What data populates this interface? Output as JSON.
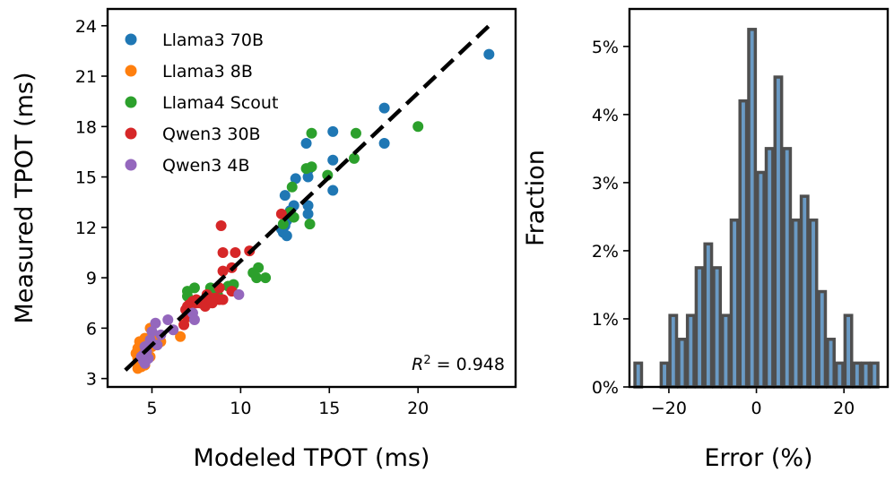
{
  "chart_data": [
    {
      "type": "scatter",
      "xlabel": "Modeled TPOT (ms)",
      "ylabel": "Measured TPOT (ms)",
      "xlim": [
        2.5,
        25.5
      ],
      "ylim": [
        2.5,
        25.0
      ],
      "xticks": [
        5,
        10,
        15,
        20
      ],
      "yticks": [
        3,
        6,
        9,
        12,
        15,
        18,
        21,
        24
      ],
      "legend_position": "top-left",
      "annotation": {
        "prefix": "R",
        "sup": "2",
        "suffix": " = 0.948"
      },
      "fit_line": {
        "x": [
          3.5,
          24.0
        ],
        "y": [
          3.5,
          24.0
        ],
        "style": "dashed"
      },
      "series": [
        {
          "name": "Llama3 70B",
          "color": "#1f77b4",
          "points": [
            [
              24.0,
              22.3
            ],
            [
              18.1,
              19.1
            ],
            [
              18.1,
              17.0
            ],
            [
              15.2,
              17.7
            ],
            [
              13.7,
              17.0
            ],
            [
              15.2,
              16.0
            ],
            [
              13.8,
              15.4
            ],
            [
              13.8,
              15.0
            ],
            [
              13.1,
              14.9
            ],
            [
              15.2,
              14.2
            ],
            [
              12.5,
              13.9
            ],
            [
              13.0,
              13.3
            ],
            [
              12.8,
              13.0
            ],
            [
              13.8,
              13.3
            ],
            [
              13.8,
              12.8
            ],
            [
              12.6,
              12.4
            ],
            [
              12.7,
              12.7
            ],
            [
              12.5,
              12.1
            ],
            [
              12.3,
              11.9
            ],
            [
              12.4,
              11.7
            ],
            [
              12.6,
              11.5
            ]
          ]
        },
        {
          "name": "Llama3 8B",
          "color": "#ff7f0e",
          "points": [
            [
              4.2,
              3.6
            ],
            [
              4.3,
              3.8
            ],
            [
              4.4,
              4.0
            ],
            [
              4.2,
              4.2
            ],
            [
              4.3,
              4.4
            ],
            [
              4.5,
              4.6
            ],
            [
              4.2,
              4.8
            ],
            [
              4.4,
              5.0
            ],
            [
              4.3,
              5.2
            ],
            [
              4.6,
              5.4
            ],
            [
              4.8,
              5.1
            ],
            [
              4.7,
              4.7
            ],
            [
              4.5,
              4.4
            ],
            [
              5.2,
              5.4
            ],
            [
              5.5,
              5.2
            ],
            [
              4.9,
              6.0
            ],
            [
              6.6,
              5.5
            ],
            [
              6.9,
              6.6
            ],
            [
              4.6,
              3.8
            ],
            [
              4.9,
              4.3
            ],
            [
              5.0,
              4.9
            ],
            [
              4.3,
              4.1
            ],
            [
              4.1,
              4.5
            ],
            [
              4.4,
              3.7
            ]
          ]
        },
        {
          "name": "Llama4 Scout",
          "color": "#2ca02c",
          "points": [
            [
              20.0,
              18.0
            ],
            [
              16.5,
              17.6
            ],
            [
              14.0,
              17.6
            ],
            [
              16.4,
              16.1
            ],
            [
              14.9,
              15.1
            ],
            [
              13.7,
              15.5
            ],
            [
              14.0,
              15.6
            ],
            [
              12.9,
              14.4
            ],
            [
              12.8,
              12.9
            ],
            [
              13.0,
              12.6
            ],
            [
              12.4,
              12.2
            ],
            [
              13.9,
              12.2
            ],
            [
              11.0,
              9.6
            ],
            [
              11.4,
              9.0
            ],
            [
              10.9,
              9.0
            ],
            [
              10.7,
              9.3
            ],
            [
              9.3,
              8.5
            ],
            [
              9.6,
              8.6
            ],
            [
              8.3,
              8.4
            ],
            [
              7.0,
              8.2
            ],
            [
              7.4,
              8.4
            ],
            [
              7.0,
              7.9
            ],
            [
              9.5,
              8.3
            ],
            [
              8.7,
              8.0
            ]
          ]
        },
        {
          "name": "Qwen3 30B",
          "color": "#d62728",
          "points": [
            [
              12.3,
              12.8
            ],
            [
              8.9,
              12.1
            ],
            [
              10.5,
              10.6
            ],
            [
              9.7,
              10.5
            ],
            [
              9.0,
              10.5
            ],
            [
              9.5,
              9.6
            ],
            [
              9.0,
              9.4
            ],
            [
              8.8,
              8.4
            ],
            [
              9.5,
              8.2
            ],
            [
              8.1,
              8.0
            ],
            [
              8.3,
              7.8
            ],
            [
              8.6,
              7.8
            ],
            [
              8.8,
              7.7
            ],
            [
              7.9,
              7.6
            ],
            [
              7.7,
              7.5
            ],
            [
              7.5,
              7.5
            ],
            [
              7.3,
              7.6
            ],
            [
              7.1,
              7.4
            ],
            [
              7.0,
              7.3
            ],
            [
              6.9,
              7.1
            ],
            [
              7.2,
              7.0
            ],
            [
              7.0,
              6.7
            ],
            [
              6.8,
              6.2
            ],
            [
              7.5,
              7.7
            ],
            [
              8.0,
              7.3
            ],
            [
              8.4,
              7.5
            ],
            [
              9.0,
              7.7
            ]
          ]
        },
        {
          "name": "Qwen3 4B",
          "color": "#9467bd",
          "points": [
            [
              9.9,
              8.0
            ],
            [
              5.2,
              6.3
            ],
            [
              5.9,
              6.5
            ],
            [
              7.4,
              6.5
            ],
            [
              7.3,
              6.9
            ],
            [
              6.2,
              5.9
            ],
            [
              5.5,
              5.6
            ],
            [
              5.0,
              5.8
            ],
            [
              4.9,
              5.3
            ],
            [
              4.6,
              4.9
            ],
            [
              4.7,
              4.6
            ],
            [
              4.5,
              4.4
            ],
            [
              4.8,
              4.2
            ],
            [
              4.5,
              4.1
            ],
            [
              4.6,
              3.9
            ],
            [
              4.4,
              4.3
            ],
            [
              5.3,
              5.0
            ]
          ]
        }
      ]
    },
    {
      "type": "bar",
      "subtype": "histogram",
      "xlabel": "Error (%)",
      "ylabel": "Fraction",
      "xlim": [
        -29,
        30
      ],
      "ylim": [
        0,
        5.55
      ],
      "xticks": [
        -20,
        0,
        20
      ],
      "xtick_labels": [
        "−20",
        "0",
        "20"
      ],
      "yticks": [
        0,
        1,
        2,
        3,
        4,
        5
      ],
      "ytick_labels": [
        "0%",
        "1%",
        "2%",
        "3%",
        "4%",
        "5%"
      ],
      "bar_color": "#6a9ac4",
      "edge_color": "#4f4f4f",
      "bins": [
        {
          "left": -28,
          "right": -26,
          "value": 0.35
        },
        {
          "left": -22,
          "right": -20,
          "value": 0.35
        },
        {
          "left": -20,
          "right": -18,
          "value": 1.05
        },
        {
          "left": -18,
          "right": -16,
          "value": 0.7
        },
        {
          "left": -16,
          "right": -14,
          "value": 1.05
        },
        {
          "left": -14,
          "right": -12,
          "value": 1.75
        },
        {
          "left": -12,
          "right": -10,
          "value": 2.1
        },
        {
          "left": -10,
          "right": -8,
          "value": 1.75
        },
        {
          "left": -8,
          "right": -6,
          "value": 1.05
        },
        {
          "left": -6,
          "right": -4,
          "value": 2.45
        },
        {
          "left": -4,
          "right": -2,
          "value": 4.2
        },
        {
          "left": -2,
          "right": 0,
          "value": 5.25
        },
        {
          "left": 0,
          "right": 2,
          "value": 3.15
        },
        {
          "left": 2,
          "right": 4,
          "value": 3.5
        },
        {
          "left": 4,
          "right": 6,
          "value": 4.55
        },
        {
          "left": 6,
          "right": 8,
          "value": 3.5
        },
        {
          "left": 8,
          "right": 10,
          "value": 2.45
        },
        {
          "left": 10,
          "right": 12,
          "value": 2.8
        },
        {
          "left": 12,
          "right": 14,
          "value": 2.45
        },
        {
          "left": 14,
          "right": 16,
          "value": 1.4
        },
        {
          "left": 16,
          "right": 18,
          "value": 0.7
        },
        {
          "left": 18,
          "right": 20,
          "value": 0.35
        },
        {
          "left": 20,
          "right": 22,
          "value": 1.05
        },
        {
          "left": 22,
          "right": 24,
          "value": 0.35
        },
        {
          "left": 24,
          "right": 26,
          "value": 0.35
        },
        {
          "left": 26,
          "right": 28,
          "value": 0.35
        }
      ]
    }
  ]
}
